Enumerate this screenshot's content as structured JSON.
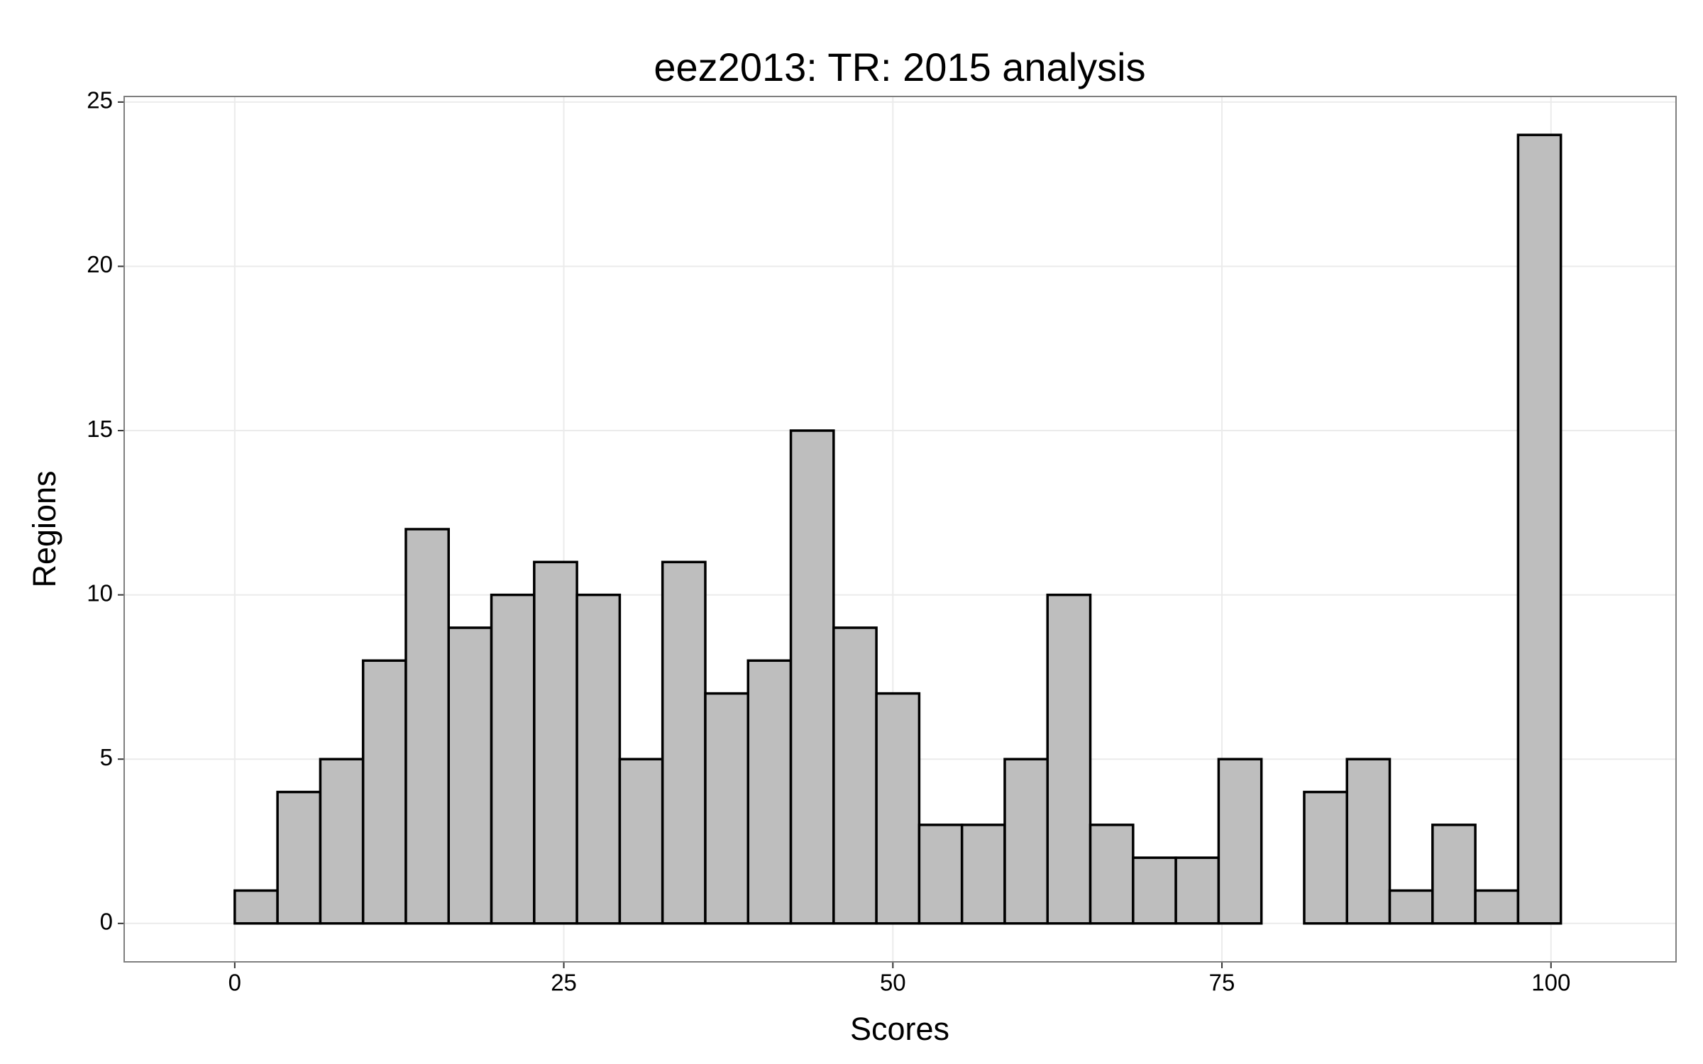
{
  "chart_data": {
    "type": "histogram",
    "title": "eez2013: TR: 2015 analysis",
    "x_label": "Scores",
    "y_label": "Regions",
    "bins": [
      -3.25,
      0,
      3.25,
      6.5,
      9.75,
      13,
      16.25,
      19.5,
      22.75,
      26,
      29.25,
      32.5,
      35.75,
      39,
      42.25,
      45.5,
      48.75,
      52,
      55.25,
      58.5,
      61.75,
      65,
      68.25,
      71.5,
      74.75,
      78,
      81.25,
      84.5,
      87.75,
      91,
      94.25,
      97.5,
      100.75,
      104
    ],
    "values": [
      0,
      1,
      4,
      5,
      8,
      12,
      9,
      10,
      11,
      10,
      5,
      11,
      7,
      8,
      15,
      9,
      7,
      3,
      3,
      5,
      10,
      3,
      2,
      2,
      5,
      0,
      4,
      5,
      1,
      3,
      1,
      24,
      0
    ],
    "color": "#bebebe",
    "edge_color": "#000000",
    "xlim": [
      -8.4,
      109.5
    ],
    "ylim": [
      -1.17,
      25.17
    ],
    "xticks": [
      0,
      25,
      50,
      75,
      100
    ],
    "yticks": [
      0,
      5,
      10,
      15,
      20,
      25
    ],
    "grid": true
  }
}
